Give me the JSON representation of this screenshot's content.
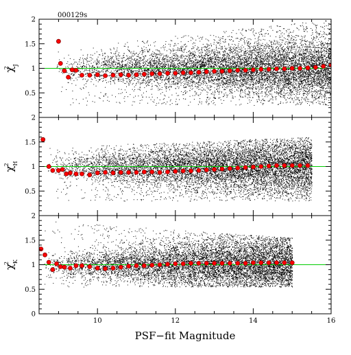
{
  "tag": "000129s",
  "xlabel": "PSF−fit Magnitude",
  "colors": {
    "scatter": "#000000",
    "median": "#ff0000",
    "reference": "#00cc00"
  },
  "chart_data": [
    {
      "type": "scatter",
      "band": "J",
      "ylabel_base": "χ",
      "ylabel_sup": "2",
      "ylabel_sub": "J",
      "xlim": [
        8.5,
        16
      ],
      "ylim": [
        0,
        2
      ],
      "x_ticks": [
        10,
        12,
        14,
        16
      ],
      "y_ticks": [
        0.5,
        1,
        1.5,
        2
      ],
      "y_tick_labels": [
        "0.5",
        "1",
        "1.5",
        "2"
      ],
      "reference_line": 1.0,
      "scatter_extent": [
        8.9,
        16.0
      ],
      "scatter_spread": {
        "faint_upper": 2.0,
        "bright_upper": 1.4,
        "lower": 0.25
      },
      "median_points": {
        "x": [
          9.0,
          9.05,
          9.15,
          9.25,
          9.35,
          9.45,
          9.6,
          9.8,
          10.0,
          10.2,
          10.4,
          10.6,
          10.8,
          11.0,
          11.2,
          11.4,
          11.6,
          11.8,
          12.0,
          12.2,
          12.4,
          12.6,
          12.8,
          13.0,
          13.2,
          13.4,
          13.6,
          13.8,
          14.0,
          14.2,
          14.4,
          14.6,
          14.8,
          15.0,
          15.2,
          15.4,
          15.6,
          15.8,
          16.0
        ],
        "y": [
          1.55,
          1.1,
          0.95,
          0.82,
          0.97,
          0.96,
          0.86,
          0.86,
          0.87,
          0.85,
          0.86,
          0.87,
          0.86,
          0.87,
          0.88,
          0.89,
          0.89,
          0.9,
          0.9,
          0.91,
          0.91,
          0.92,
          0.93,
          0.94,
          0.94,
          0.95,
          0.96,
          0.96,
          0.97,
          0.98,
          0.98,
          0.99,
          0.99,
          1.0,
          1.0,
          1.01,
          1.02,
          1.04,
          1.07
        ]
      }
    },
    {
      "type": "scatter",
      "band": "H",
      "ylabel_base": "χ",
      "ylabel_sup": "2",
      "ylabel_sub": "H",
      "xlim": [
        8.5,
        16
      ],
      "ylim": [
        0,
        2
      ],
      "x_ticks": [
        10,
        12,
        14,
        16
      ],
      "y_ticks": [
        0.5,
        1,
        1.5,
        2
      ],
      "y_tick_labels": [
        "0.5",
        "1",
        "1.5",
        "2"
      ],
      "reference_line": 1.0,
      "scatter_extent": [
        8.7,
        15.5
      ],
      "scatter_spread": {
        "faint_upper": 1.6,
        "bright_upper": 1.4,
        "lower": 0.3
      },
      "median_points": {
        "x": [
          8.6,
          8.75,
          8.85,
          9.0,
          9.1,
          9.2,
          9.3,
          9.45,
          9.6,
          9.8,
          10.0,
          10.2,
          10.4,
          10.6,
          10.8,
          11.0,
          11.2,
          11.4,
          11.6,
          11.8,
          12.0,
          12.2,
          12.4,
          12.6,
          12.8,
          13.0,
          13.2,
          13.4,
          13.6,
          13.8,
          14.0,
          14.2,
          14.4,
          14.6,
          14.8,
          15.0,
          15.2,
          15.4
        ],
        "y": [
          1.55,
          1.0,
          0.92,
          0.92,
          0.94,
          0.85,
          0.87,
          0.85,
          0.85,
          0.83,
          0.87,
          0.88,
          0.87,
          0.88,
          0.88,
          0.88,
          0.89,
          0.89,
          0.88,
          0.89,
          0.9,
          0.91,
          0.91,
          0.92,
          0.93,
          0.94,
          0.95,
          0.96,
          0.97,
          0.98,
          0.99,
          1.0,
          1.01,
          1.02,
          1.02,
          1.02,
          1.02,
          1.02
        ]
      }
    },
    {
      "type": "scatter",
      "band": "K",
      "ylabel_base": "χ",
      "ylabel_sup": "2",
      "ylabel_sub": "K",
      "xlim": [
        8.5,
        16
      ],
      "ylim": [
        0,
        2
      ],
      "x_ticks": [
        10,
        12,
        14,
        16
      ],
      "y_ticks": [
        0,
        0.5,
        1,
        1.5,
        2
      ],
      "y_tick_labels": [
        "0",
        "0.5",
        "1",
        "1.5",
        "2"
      ],
      "x_tick_labels": [
        "10",
        "12",
        "14",
        "16"
      ],
      "reference_line": 1.0,
      "scatter_extent": [
        8.6,
        15.0
      ],
      "scatter_spread": {
        "faint_upper": 1.55,
        "bright_upper": 1.9,
        "lower": 0.55
      },
      "median_points": {
        "x": [
          8.55,
          8.65,
          8.75,
          8.85,
          8.95,
          9.05,
          9.15,
          9.3,
          9.45,
          9.6,
          9.8,
          10.0,
          10.2,
          10.4,
          10.6,
          10.8,
          11.0,
          11.2,
          11.4,
          11.6,
          11.8,
          12.0,
          12.2,
          12.4,
          12.6,
          12.8,
          13.0,
          13.2,
          13.4,
          13.6,
          13.8,
          14.0,
          14.2,
          14.4,
          14.6,
          14.8,
          15.0
        ],
        "y": [
          1.32,
          1.2,
          1.05,
          0.9,
          1.02,
          0.96,
          0.95,
          0.93,
          0.98,
          0.98,
          0.96,
          0.93,
          0.92,
          0.93,
          0.95,
          0.97,
          0.98,
          0.98,
          0.99,
          1.0,
          1.01,
          1.02,
          1.02,
          1.03,
          1.03,
          1.03,
          1.03,
          1.03,
          1.03,
          1.03,
          1.03,
          1.04,
          1.04,
          1.04,
          1.04,
          1.04,
          1.04
        ]
      }
    }
  ]
}
